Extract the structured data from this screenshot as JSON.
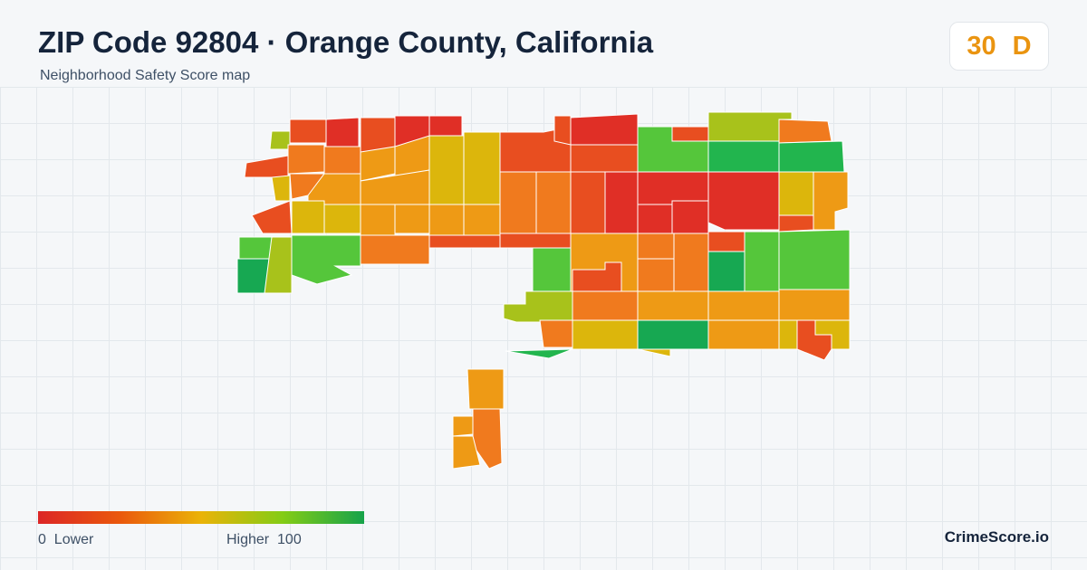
{
  "header": {
    "title": "ZIP Code 92804 · Orange County, California",
    "subtitle": "Neighborhood Safety Score map"
  },
  "score_badge": {
    "score": "30",
    "grade": "D",
    "color": "#ea9410"
  },
  "legend": {
    "low_label": "0  Lower",
    "high_label": "Higher  100",
    "colors": [
      "#dc2626",
      "#ea580c",
      "#eab308",
      "#84cc16",
      "#16a34a"
    ]
  },
  "brand": "CrimeScore.io",
  "palette": {
    "red": "#e02f26",
    "red_orange": "#e84e20",
    "orange": "#f07a1e",
    "amber": "#ee9a15",
    "yellow": "#dcb60c",
    "lime": "#a8c21b",
    "light_green": "#55c63b",
    "green": "#22b54e",
    "dark_green": "#17a852"
  }
}
